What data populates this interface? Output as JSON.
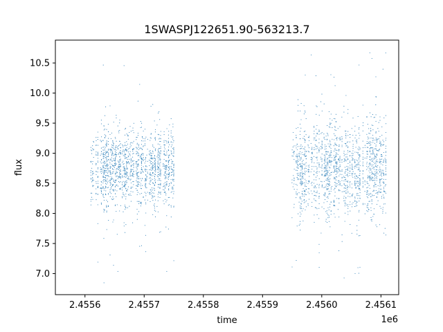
{
  "chart_data": {
    "type": "scatter",
    "title": "1SWASPJ122651.90-563213.7",
    "xlabel": "time",
    "ylabel": "flux",
    "x_offset_label": "1e6",
    "xlim": [
      2.45555,
      2.45613
    ],
    "ylim": [
      6.65,
      10.88
    ],
    "x_ticks": [
      2.4556,
      2.4557,
      2.4558,
      2.4559,
      2.456,
      2.4561
    ],
    "x_tick_labels": [
      "2.4556",
      "2.4557",
      "2.4558",
      "2.4559",
      "2.4560",
      "2.4561"
    ],
    "y_ticks": [
      7.0,
      7.5,
      8.0,
      8.5,
      9.0,
      9.5,
      10.0,
      10.5
    ],
    "y_tick_labels": [
      "7.0",
      "7.5",
      "8.0",
      "8.5",
      "9.0",
      "9.5",
      "10.0",
      "10.5"
    ],
    "grid": false,
    "colors": {
      "points": "#1f77b4"
    },
    "series": [
      {
        "observing_seasons": [
          {
            "x_range": [
              2.45561,
              2.45575
            ],
            "y_center": 8.72,
            "y_typical": [
              8.0,
              9.5
            ],
            "y_extremes": [
              6.8,
              10.62
            ]
          },
          {
            "x_range": [
              2.45595,
              2.45611
            ],
            "y_center": 8.72,
            "y_typical": [
              7.8,
              9.6
            ],
            "y_extremes": [
              6.82,
              10.68
            ]
          }
        ]
      }
    ]
  }
}
